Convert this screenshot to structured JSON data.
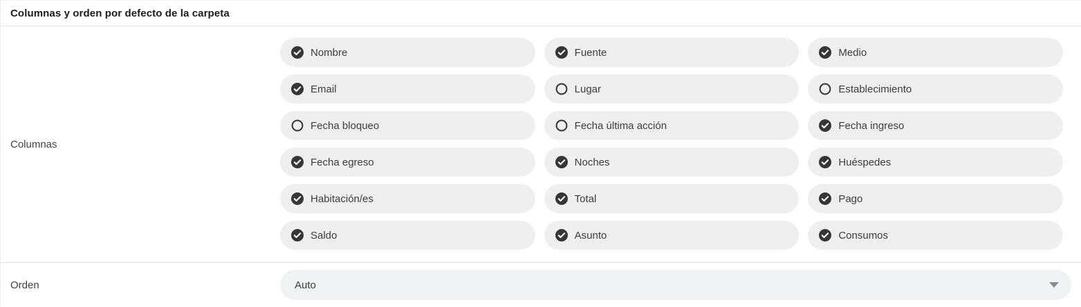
{
  "header": {
    "title": "Columnas y orden por defecto de la carpeta"
  },
  "columns": {
    "label": "Columnas",
    "items": [
      {
        "label": "Nombre",
        "checked": true
      },
      {
        "label": "Fuente",
        "checked": true
      },
      {
        "label": "Medio",
        "checked": true
      },
      {
        "label": "Email",
        "checked": true
      },
      {
        "label": "Lugar",
        "checked": false
      },
      {
        "label": "Establecimiento",
        "checked": false
      },
      {
        "label": "Fecha bloqueo",
        "checked": false
      },
      {
        "label": "Fecha última acción",
        "checked": false
      },
      {
        "label": "Fecha ingreso",
        "checked": true
      },
      {
        "label": "Fecha egreso",
        "checked": true
      },
      {
        "label": "Noches",
        "checked": true
      },
      {
        "label": "Huéspedes",
        "checked": true
      },
      {
        "label": "Habitación/es",
        "checked": true
      },
      {
        "label": "Total",
        "checked": true
      },
      {
        "label": "Pago",
        "checked": true
      },
      {
        "label": "Saldo",
        "checked": true
      },
      {
        "label": "Asunto",
        "checked": true
      },
      {
        "label": "Consumos",
        "checked": true
      }
    ]
  },
  "order": {
    "label": "Orden",
    "value": "Auto"
  },
  "icons": {
    "checked": "check-circle-icon",
    "unchecked": "circle-outline-icon",
    "dropdown": "caret-down-icon"
  },
  "colors": {
    "pill_background": "#efefef",
    "select_background": "#f1f2f3",
    "check_icon": "#363636",
    "text": "#3c3c3c",
    "divider": "#e4e4e4"
  }
}
